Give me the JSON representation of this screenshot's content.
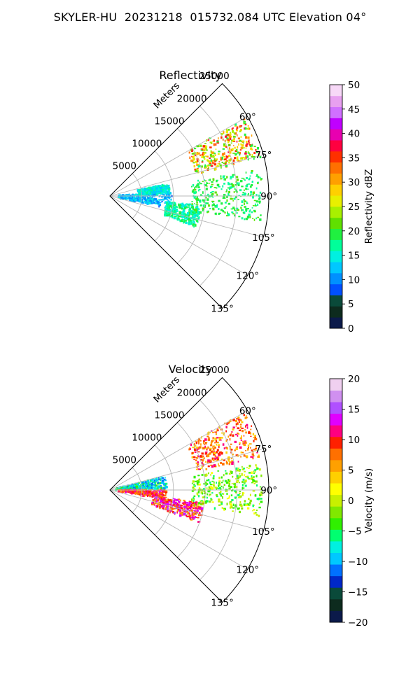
{
  "figure": {
    "suptitle": "SKYLER-HU  20231218  015732.084 UTC Elevation 04°"
  },
  "chart_data": [
    {
      "type": "heatmap",
      "projection": "polar-sector",
      "title": "Reflectivity",
      "radial_label": "Meters",
      "radial_ticks": [
        5000,
        10000,
        15000,
        20000,
        25000
      ],
      "radial_tick_labels": [
        "5000",
        "10000",
        "15000",
        "20000",
        "25000"
      ],
      "r_range": [
        0,
        25000
      ],
      "theta_range_deg": [
        45,
        135
      ],
      "theta_ticks_deg": [
        60,
        75,
        90,
        105,
        120,
        135
      ],
      "theta_tick_labels": [
        "60°",
        "75°",
        "90°",
        "105°",
        "120°",
        "135°"
      ],
      "grid": true,
      "colorbar": {
        "label": "Reflectivity dBZ",
        "range": [
          0,
          50
        ],
        "ticks": [
          0,
          5,
          10,
          15,
          20,
          25,
          30,
          35,
          40,
          45,
          50
        ],
        "tick_labels": [
          "0",
          "5",
          "10",
          "15",
          "20",
          "25",
          "30",
          "35",
          "40",
          "45",
          "50"
        ],
        "colormap": "pyart_NWSRef",
        "colors": [
          "#0b1a4a",
          "#0d2b1e",
          "#0a4a3a",
          "#0050ff",
          "#0090ff",
          "#00c8ff",
          "#00f0e0",
          "#00ff9a",
          "#20f040",
          "#60e000",
          "#a8f000",
          "#e8f000",
          "#ffd000",
          "#ffa000",
          "#ff7000",
          "#ff3000",
          "#ff0040",
          "#e800b0",
          "#c000ff",
          "#d070ff",
          "#e8a0f0",
          "#f7d8f7"
        ]
      },
      "echo_regions": [
        {
          "theta_deg": [
            86,
            102
          ],
          "r_m": [
            1400,
            9800
          ],
          "value_dbz": [
            9,
            15
          ]
        },
        {
          "theta_deg": [
            78,
            88
          ],
          "r_m": [
            4500,
            9500
          ],
          "value_dbz": [
            12,
            18
          ]
        },
        {
          "theta_deg": [
            96,
            110
          ],
          "r_m": [
            9000,
            14500
          ],
          "value_dbz": [
            14,
            20
          ]
        },
        {
          "theta_deg": [
            60,
            76
          ],
          "r_m": [
            14000,
            24500
          ],
          "value_dbz": [
            18,
            38
          ]
        },
        {
          "theta_deg": [
            80,
            100
          ],
          "r_m": [
            13000,
            24000
          ],
          "value_dbz": [
            16,
            22
          ]
        }
      ]
    },
    {
      "type": "heatmap",
      "projection": "polar-sector",
      "title": "Velocity",
      "radial_label": "Meters",
      "radial_ticks": [
        5000,
        10000,
        15000,
        20000,
        25000
      ],
      "radial_tick_labels": [
        "5000",
        "10000",
        "15000",
        "20000",
        "25000"
      ],
      "r_range": [
        0,
        25000
      ],
      "theta_range_deg": [
        45,
        135
      ],
      "theta_ticks_deg": [
        60,
        75,
        90,
        105,
        120,
        135
      ],
      "theta_tick_labels": [
        "60°",
        "75°",
        "90°",
        "105°",
        "120°",
        "135°"
      ],
      "grid": true,
      "colorbar": {
        "label": "Velocity (m/s)",
        "range": [
          -20,
          20
        ],
        "ticks": [
          -20,
          -15,
          -10,
          -5,
          0,
          5,
          10,
          15,
          20
        ],
        "tick_labels": [
          "−20",
          "−15",
          "−10",
          "−5",
          "0",
          "5",
          "10",
          "15",
          "20"
        ],
        "colormap": "pyart_BuDRd18",
        "colors": [
          "#0b1a4a",
          "#0d2b1e",
          "#0a4a3a",
          "#0028c8",
          "#0070ff",
          "#00c8ff",
          "#00f0e0",
          "#00ff70",
          "#30f000",
          "#80e800",
          "#c8f000",
          "#ffff00",
          "#ffd000",
          "#ffa000",
          "#ff7000",
          "#ff2000",
          "#ff0080",
          "#e000ff",
          "#b050ff",
          "#d090f0",
          "#f0d0f0"
        ]
      },
      "echo_regions": [
        {
          "theta_deg": [
            76,
            90
          ],
          "r_m": [
            1000,
            9000
          ],
          "value_ms": [
            -12,
            -4
          ]
        },
        {
          "theta_deg": [
            90,
            100
          ],
          "r_m": [
            1400,
            9000
          ],
          "value_ms": [
            6,
            13
          ]
        },
        {
          "theta_deg": [
            98,
            110
          ],
          "r_m": [
            7000,
            15000
          ],
          "value_ms": [
            5,
            15
          ]
        },
        {
          "theta_deg": [
            60,
            78
          ],
          "r_m": [
            14000,
            24500
          ],
          "value_ms": [
            3,
            12
          ]
        },
        {
          "theta_deg": [
            80,
            100
          ],
          "r_m": [
            13000,
            24000
          ],
          "value_ms": [
            -6,
            2
          ]
        }
      ]
    }
  ]
}
